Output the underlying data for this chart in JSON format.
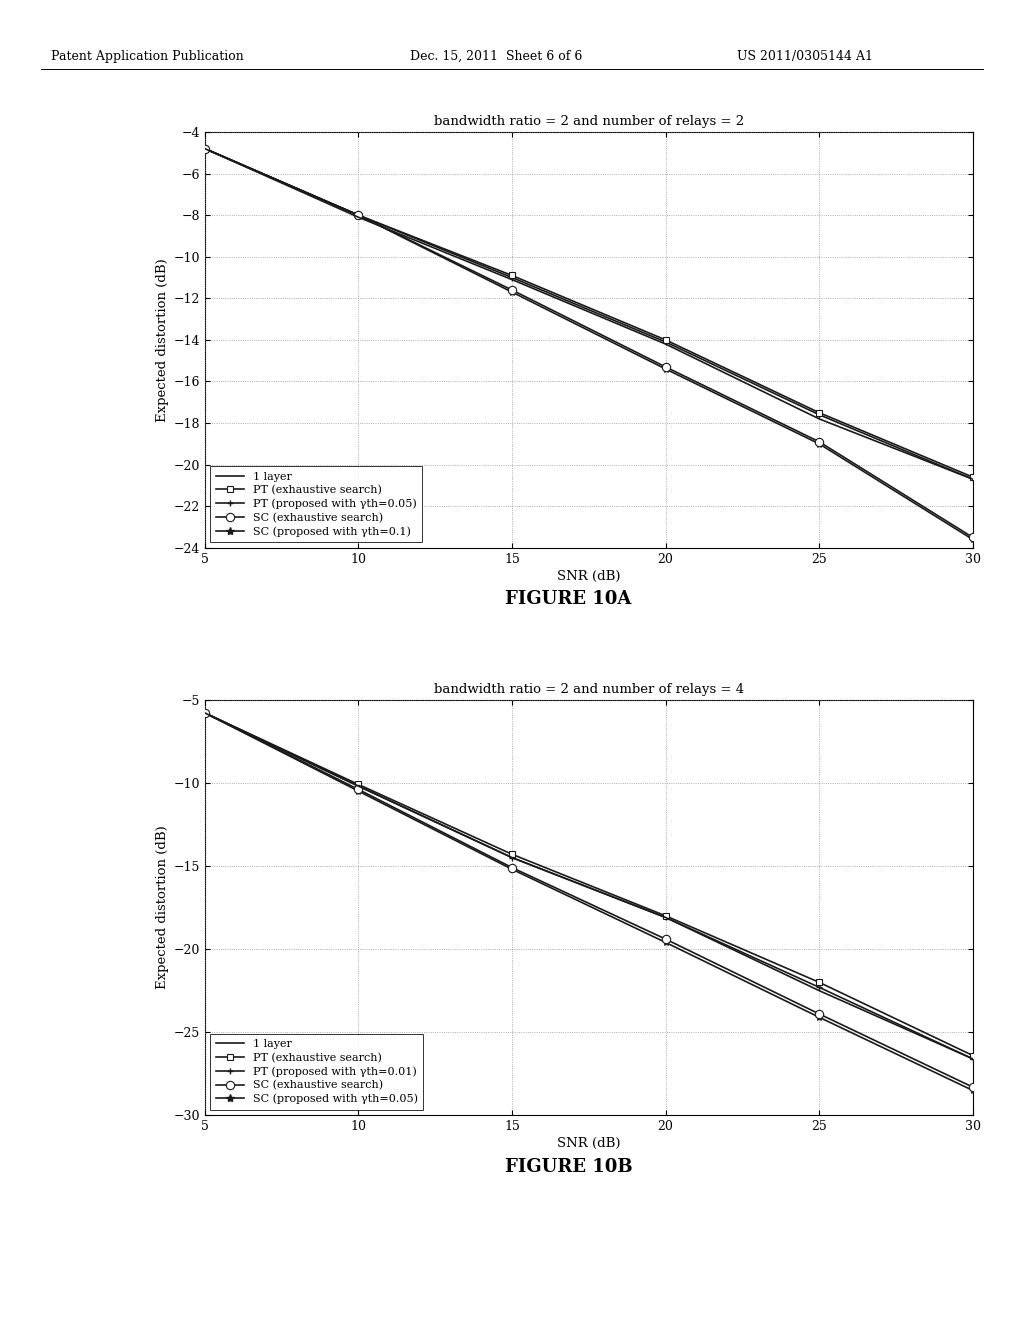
{
  "fig_width": 10.24,
  "fig_height": 13.2,
  "background_color": "#ffffff",
  "header_left": "Patent Application Publication",
  "header_mid": "Dec. 15, 2011  Sheet 6 of 6",
  "header_right": "US 2011/0305144 A1",
  "figure_label_A": "FIGURE 10A",
  "figure_label_B": "FIGURE 10B",
  "plot_A": {
    "title": "bandwidth ratio = 2 and number of relays = 2",
    "xlabel": "SNR (dB)",
    "ylabel": "Expected distortion (dB)",
    "xlim": [
      5,
      30
    ],
    "ylim": [
      -24,
      -4
    ],
    "xticks": [
      5,
      10,
      15,
      20,
      25,
      30
    ],
    "yticks": [
      -24,
      -22,
      -20,
      -18,
      -16,
      -14,
      -12,
      -10,
      -8,
      -6,
      -4
    ],
    "snr": [
      5,
      10,
      15,
      20,
      25,
      30
    ],
    "series": {
      "1layer": [
        -4.8,
        -8.1,
        -11.1,
        -14.2,
        -17.8,
        -20.7
      ],
      "PT_exh": [
        -4.8,
        -8.0,
        -10.9,
        -14.0,
        -17.5,
        -20.6
      ],
      "PT_prop": [
        -4.8,
        -8.0,
        -11.0,
        -14.1,
        -17.6,
        -20.7
      ],
      "SC_exh": [
        -4.8,
        -8.0,
        -11.6,
        -15.3,
        -18.9,
        -23.5
      ],
      "SC_prop": [
        -4.8,
        -8.0,
        -11.7,
        -15.4,
        -19.0,
        -23.6
      ]
    },
    "legend_label_1layer": "1 layer",
    "legend_label_PT_exh": "PT (exhaustive search)",
    "legend_label_PT_prop": "PT (proposed with γth=0.05)",
    "legend_label_SC_exh": "SC (exhaustive search)",
    "legend_label_SC_prop": "SC (proposed with γth=0.1)"
  },
  "plot_B": {
    "title": "bandwidth ratio = 2 and number of relays = 4",
    "xlabel": "SNR (dB)",
    "ylabel": "Expected distortion (dB)",
    "xlim": [
      5,
      30
    ],
    "ylim": [
      -30,
      -5
    ],
    "xticks": [
      5,
      10,
      15,
      20,
      25,
      30
    ],
    "yticks": [
      -30,
      -25,
      -20,
      -15,
      -10,
      -5
    ],
    "snr": [
      5,
      10,
      15,
      20,
      25,
      30
    ],
    "series": {
      "1layer": [
        -5.8,
        -10.2,
        -14.5,
        -18.1,
        -22.5,
        -26.6
      ],
      "PT_exh": [
        -5.8,
        -10.1,
        -14.3,
        -18.0,
        -22.0,
        -26.4
      ],
      "PT_prop": [
        -5.8,
        -10.2,
        -14.5,
        -18.1,
        -22.3,
        -26.6
      ],
      "SC_exh": [
        -5.8,
        -10.4,
        -15.1,
        -19.4,
        -23.9,
        -28.3
      ],
      "SC_prop": [
        -5.8,
        -10.5,
        -15.2,
        -19.6,
        -24.1,
        -28.5
      ]
    },
    "legend_label_1layer": "1 layer",
    "legend_label_PT_exh": "PT (exhaustive search)",
    "legend_label_PT_prop": "PT (proposed with γth=0.01)",
    "legend_label_SC_exh": "SC (exhaustive search)",
    "legend_label_SC_prop": "SC (proposed with γth=0.05)"
  }
}
